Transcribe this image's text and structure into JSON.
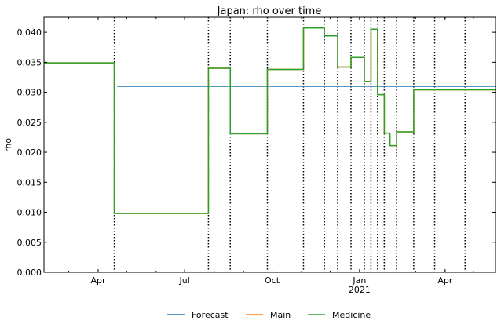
{
  "chart_data": {
    "type": "line",
    "title": "Japan: rho over time",
    "xlabel": "",
    "ylabel": "rho",
    "xlim": [
      "2020-02-04",
      "2021-05-24"
    ],
    "ylim": [
      0,
      0.0425
    ],
    "yticks": [
      "0.000",
      "0.005",
      "0.010",
      "0.015",
      "0.020",
      "0.025",
      "0.030",
      "0.035",
      "0.040"
    ],
    "xticks": [
      {
        "date": "2020-04-01",
        "label": "Apr",
        "sublabel": ""
      },
      {
        "date": "2020-07-01",
        "label": "Jul",
        "sublabel": ""
      },
      {
        "date": "2020-10-01",
        "label": "Oct",
        "sublabel": ""
      },
      {
        "date": "2021-01-01",
        "label": "Jan",
        "sublabel": "2021"
      },
      {
        "date": "2021-04-01",
        "label": "Apr",
        "sublabel": ""
      }
    ],
    "change_dates": [
      "2020-04-18",
      "2020-07-26",
      "2020-08-18",
      "2020-09-26",
      "2020-11-03",
      "2020-11-25",
      "2020-12-09",
      "2020-12-23",
      "2021-01-06",
      "2021-01-13",
      "2021-01-20",
      "2021-01-27",
      "2021-02-09",
      "2021-02-27",
      "2021-03-21",
      "2021-04-22"
    ],
    "legend_position": "bottom-center",
    "grid": false,
    "series": [
      {
        "name": "Forecast",
        "color": "#1f77b4",
        "points": [
          [
            "2020-04-21",
            0.031
          ],
          [
            "2021-05-24",
            0.031
          ]
        ]
      },
      {
        "name": "Main",
        "color": "#ff7f0e",
        "points": [
          [
            "2020-02-04",
            0.0349
          ],
          [
            "2020-04-18",
            0.0349
          ],
          [
            "2020-04-18",
            0.0098
          ],
          [
            "2020-07-26",
            0.0098
          ],
          [
            "2020-07-26",
            0.034
          ],
          [
            "2020-08-18",
            0.034
          ],
          [
            "2020-08-18",
            0.0231
          ],
          [
            "2020-09-26",
            0.0231
          ],
          [
            "2020-09-26",
            0.0338
          ],
          [
            "2020-11-03",
            0.0338
          ],
          [
            "2020-11-03",
            0.0407
          ],
          [
            "2020-11-25",
            0.0407
          ],
          [
            "2020-11-25",
            0.0394
          ],
          [
            "2020-12-09",
            0.0394
          ],
          [
            "2020-12-09",
            0.0342
          ],
          [
            "2020-12-23",
            0.0342
          ],
          [
            "2020-12-23",
            0.0358
          ],
          [
            "2021-01-06",
            0.0358
          ],
          [
            "2021-01-06",
            0.0318
          ],
          [
            "2021-01-13",
            0.0318
          ],
          [
            "2021-01-13",
            0.0405
          ],
          [
            "2021-01-20",
            0.0405
          ],
          [
            "2021-01-20",
            0.0296
          ],
          [
            "2021-01-27",
            0.0296
          ],
          [
            "2021-01-27",
            0.0232
          ],
          [
            "2021-02-02",
            0.0232
          ],
          [
            "2021-02-02",
            0.0211
          ],
          [
            "2021-02-09",
            0.0211
          ],
          [
            "2021-02-09",
            0.0234
          ],
          [
            "2021-02-27",
            0.0234
          ],
          [
            "2021-02-27",
            0.0304
          ],
          [
            "2021-05-24",
            0.0304
          ]
        ]
      },
      {
        "name": "Medicine",
        "color": "#2ca02c",
        "points": [
          [
            "2020-02-04",
            0.0349
          ],
          [
            "2020-04-18",
            0.0349
          ],
          [
            "2020-04-18",
            0.0098
          ],
          [
            "2020-07-26",
            0.0098
          ],
          [
            "2020-07-26",
            0.034
          ],
          [
            "2020-08-18",
            0.034
          ],
          [
            "2020-08-18",
            0.0231
          ],
          [
            "2020-09-26",
            0.0231
          ],
          [
            "2020-09-26",
            0.0338
          ],
          [
            "2020-11-03",
            0.0338
          ],
          [
            "2020-11-03",
            0.0407
          ],
          [
            "2020-11-25",
            0.0407
          ],
          [
            "2020-11-25",
            0.0394
          ],
          [
            "2020-12-09",
            0.0394
          ],
          [
            "2020-12-09",
            0.0342
          ],
          [
            "2020-12-23",
            0.0342
          ],
          [
            "2020-12-23",
            0.0358
          ],
          [
            "2021-01-06",
            0.0358
          ],
          [
            "2021-01-06",
            0.0318
          ],
          [
            "2021-01-13",
            0.0318
          ],
          [
            "2021-01-13",
            0.0405
          ],
          [
            "2021-01-20",
            0.0405
          ],
          [
            "2021-01-20",
            0.0296
          ],
          [
            "2021-01-27",
            0.0296
          ],
          [
            "2021-01-27",
            0.0232
          ],
          [
            "2021-02-02",
            0.0232
          ],
          [
            "2021-02-02",
            0.0211
          ],
          [
            "2021-02-09",
            0.0211
          ],
          [
            "2021-02-09",
            0.0234
          ],
          [
            "2021-02-27",
            0.0234
          ],
          [
            "2021-02-27",
            0.0304
          ],
          [
            "2021-05-24",
            0.0304
          ]
        ]
      }
    ]
  }
}
